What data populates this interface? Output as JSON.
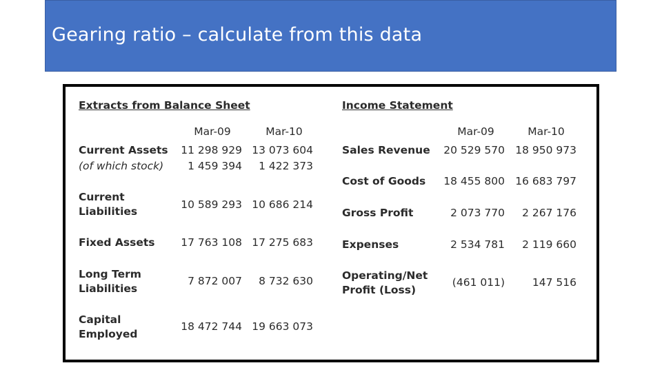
{
  "slide": {
    "title": "Gearing ratio – calculate from this data"
  },
  "balance_sheet": {
    "heading": "Extracts from Balance Sheet",
    "years": [
      "Mar-09",
      "Mar-10"
    ],
    "rows": [
      {
        "label": "Current Assets",
        "values": [
          "11 298 929",
          "13 073 604"
        ]
      },
      {
        "label": "(of which stock)",
        "values": [
          "1 459 394",
          "1 422 373"
        ]
      },
      {
        "label_line1": "Current",
        "label_line2": "Liabilities",
        "values": [
          "10 589 293",
          "10 686 214"
        ]
      },
      {
        "label": "Fixed Assets",
        "values": [
          "17 763 108",
          "17 275 683"
        ]
      },
      {
        "label_line1": "Long Term",
        "label_line2": "Liabilities",
        "values": [
          "7 872 007",
          "8 732 630"
        ]
      },
      {
        "label_line1": "Capital",
        "label_line2": "Employed",
        "values": [
          "18 472 744",
          "19 663 073"
        ]
      }
    ]
  },
  "income_statement": {
    "heading": "Income Statement",
    "years": [
      "Mar-09",
      "Mar-10"
    ],
    "rows": [
      {
        "label": "Sales Revenue",
        "values": [
          "20 529 570",
          "18 950 973"
        ]
      },
      {
        "label": "Cost of Goods",
        "values": [
          "18 455 800",
          "16 683 797"
        ]
      },
      {
        "label": "Gross Profit",
        "values": [
          "2 073 770",
          "2 267 176"
        ]
      },
      {
        "label": "Expenses",
        "values": [
          "2 534 781",
          "2 119 660"
        ]
      },
      {
        "label_line1": "Operating/Net",
        "label_line2": "Profit (Loss)",
        "values": [
          "(461 011)",
          "147 516"
        ]
      }
    ]
  }
}
